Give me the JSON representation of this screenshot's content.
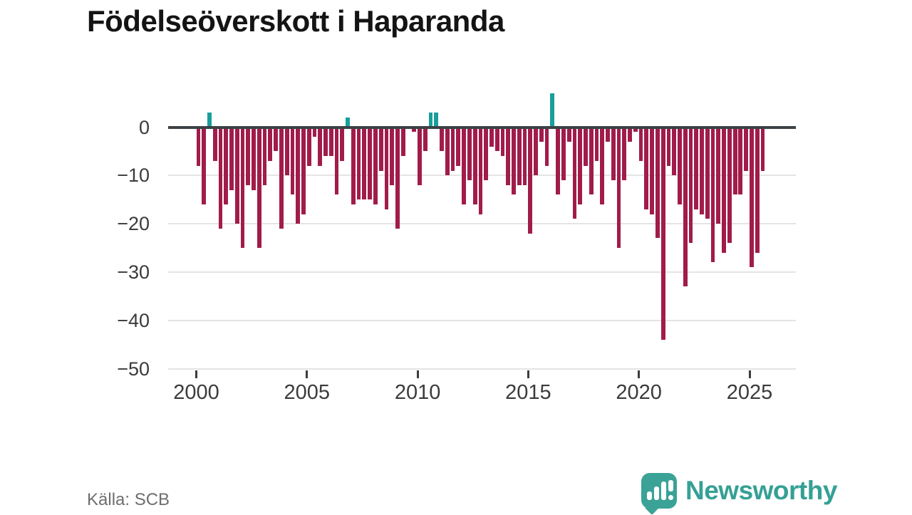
{
  "title": "Födelseöverskott i Haparanda",
  "source": "Källa: SCB",
  "brand": {
    "name": "Newsworthy"
  },
  "colors": {
    "negative_bar": "#a11c4a",
    "positive_bar": "#189f9b",
    "zero_line": "#3b4145",
    "gridline": "#e4e4e4",
    "axis_text": "#3b3b3b",
    "title_text": "#141414",
    "source_text": "#6e6e6e",
    "brand_teal": "#35a095"
  },
  "chart_data": {
    "type": "bar",
    "title": "Födelseöverskott i Haparanda",
    "x_unit": "quarter",
    "start": "2000-Q1",
    "end": "2025-Q3",
    "grid": "horizontal",
    "legend": "none",
    "ylim": [
      -50,
      8
    ],
    "yticks": [
      {
        "value": 0,
        "label": "0"
      },
      {
        "value": -10,
        "label": "−10"
      },
      {
        "value": -20,
        "label": "−20"
      },
      {
        "value": -30,
        "label": "−30"
      },
      {
        "value": -40,
        "label": "−40"
      },
      {
        "value": -50,
        "label": "−50"
      }
    ],
    "xticks": [
      {
        "value": 2000,
        "label": "2000"
      },
      {
        "value": 2005,
        "label": "2005"
      },
      {
        "value": 2010,
        "label": "2010"
      },
      {
        "value": 2015,
        "label": "2015"
      },
      {
        "value": 2020,
        "label": "2020"
      },
      {
        "value": 2025,
        "label": "2025"
      }
    ],
    "series_by_year": [
      {
        "year": 2000,
        "values": [
          -8,
          -16,
          3,
          -7
        ]
      },
      {
        "year": 2001,
        "values": [
          -21,
          -16,
          -13,
          -20
        ]
      },
      {
        "year": 2002,
        "values": [
          -25,
          -12,
          -13,
          -25
        ]
      },
      {
        "year": 2003,
        "values": [
          -12,
          -7,
          -5,
          -21
        ]
      },
      {
        "year": 2004,
        "values": [
          -10,
          -14,
          -20,
          -18
        ]
      },
      {
        "year": 2005,
        "values": [
          -8,
          -2,
          -8,
          -6
        ]
      },
      {
        "year": 2006,
        "values": [
          -6,
          -14,
          -7,
          2
        ]
      },
      {
        "year": 2007,
        "values": [
          -16,
          -15,
          -15,
          -15
        ]
      },
      {
        "year": 2008,
        "values": [
          -16,
          -9,
          -17,
          -12
        ]
      },
      {
        "year": 2009,
        "values": [
          -21,
          -6,
          0,
          -1
        ]
      },
      {
        "year": 2010,
        "values": [
          -12,
          -5,
          3,
          3
        ]
      },
      {
        "year": 2011,
        "values": [
          -5,
          -10,
          -9,
          -8
        ]
      },
      {
        "year": 2012,
        "values": [
          -16,
          -11,
          -16,
          -18
        ]
      },
      {
        "year": 2013,
        "values": [
          -11,
          -4,
          -5,
          -6
        ]
      },
      {
        "year": 2014,
        "values": [
          -12,
          -14,
          -12,
          -12
        ]
      },
      {
        "year": 2015,
        "values": [
          -22,
          -10,
          -3,
          -8
        ]
      },
      {
        "year": 2016,
        "values": [
          7,
          -14,
          -11,
          -3
        ]
      },
      {
        "year": 2017,
        "values": [
          -19,
          -16,
          -8,
          -14
        ]
      },
      {
        "year": 2018,
        "values": [
          -7,
          -16,
          -3,
          -11
        ]
      },
      {
        "year": 2019,
        "values": [
          -25,
          -11,
          -3,
          -1
        ]
      },
      {
        "year": 2020,
        "values": [
          -7,
          -17,
          -18,
          -23
        ]
      },
      {
        "year": 2021,
        "values": [
          -44,
          -8,
          -10,
          -16
        ]
      },
      {
        "year": 2022,
        "values": [
          -33,
          -24,
          -17,
          -18
        ]
      },
      {
        "year": 2023,
        "values": [
          -19,
          -28,
          -20,
          -26
        ]
      },
      {
        "year": 2024,
        "values": [
          -24,
          -14,
          -14,
          -9
        ]
      },
      {
        "year": 2025,
        "values": [
          -29,
          -26,
          -9
        ]
      }
    ]
  }
}
